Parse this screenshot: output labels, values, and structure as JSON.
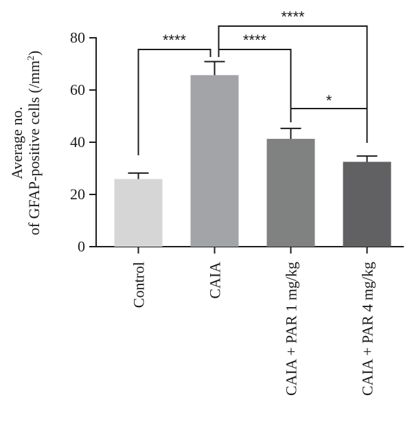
{
  "chart_data": {
    "type": "bar",
    "categories": [
      "Control",
      "CAIA",
      "CAIA + PAR 1 mg/kg",
      "CAIA + PAR 4 mg/kg"
    ],
    "values": [
      25.9,
      65.7,
      41.3,
      32.5
    ],
    "errors": [
      2.3,
      5.2,
      4.0,
      2.2
    ],
    "colors": [
      "#d6d6d6",
      "#a3a4a8",
      "#808181",
      "#616163"
    ],
    "ylabel_line1": "Average no.",
    "ylabel_line2": "of GFAP-positive cells (/mm",
    "ylabel_sup": "2",
    "ylabel_end": ")",
    "ylim": [
      0,
      80
    ],
    "yticks": [
      0,
      20,
      40,
      60,
      80
    ],
    "grid": false,
    "significance": [
      {
        "from": 0,
        "to": 1,
        "label": "****"
      },
      {
        "from": 1,
        "to": 2,
        "label": "****"
      },
      {
        "from": 1,
        "to": 3,
        "label": "****"
      },
      {
        "from": 2,
        "to": 3,
        "label": "*"
      }
    ]
  }
}
